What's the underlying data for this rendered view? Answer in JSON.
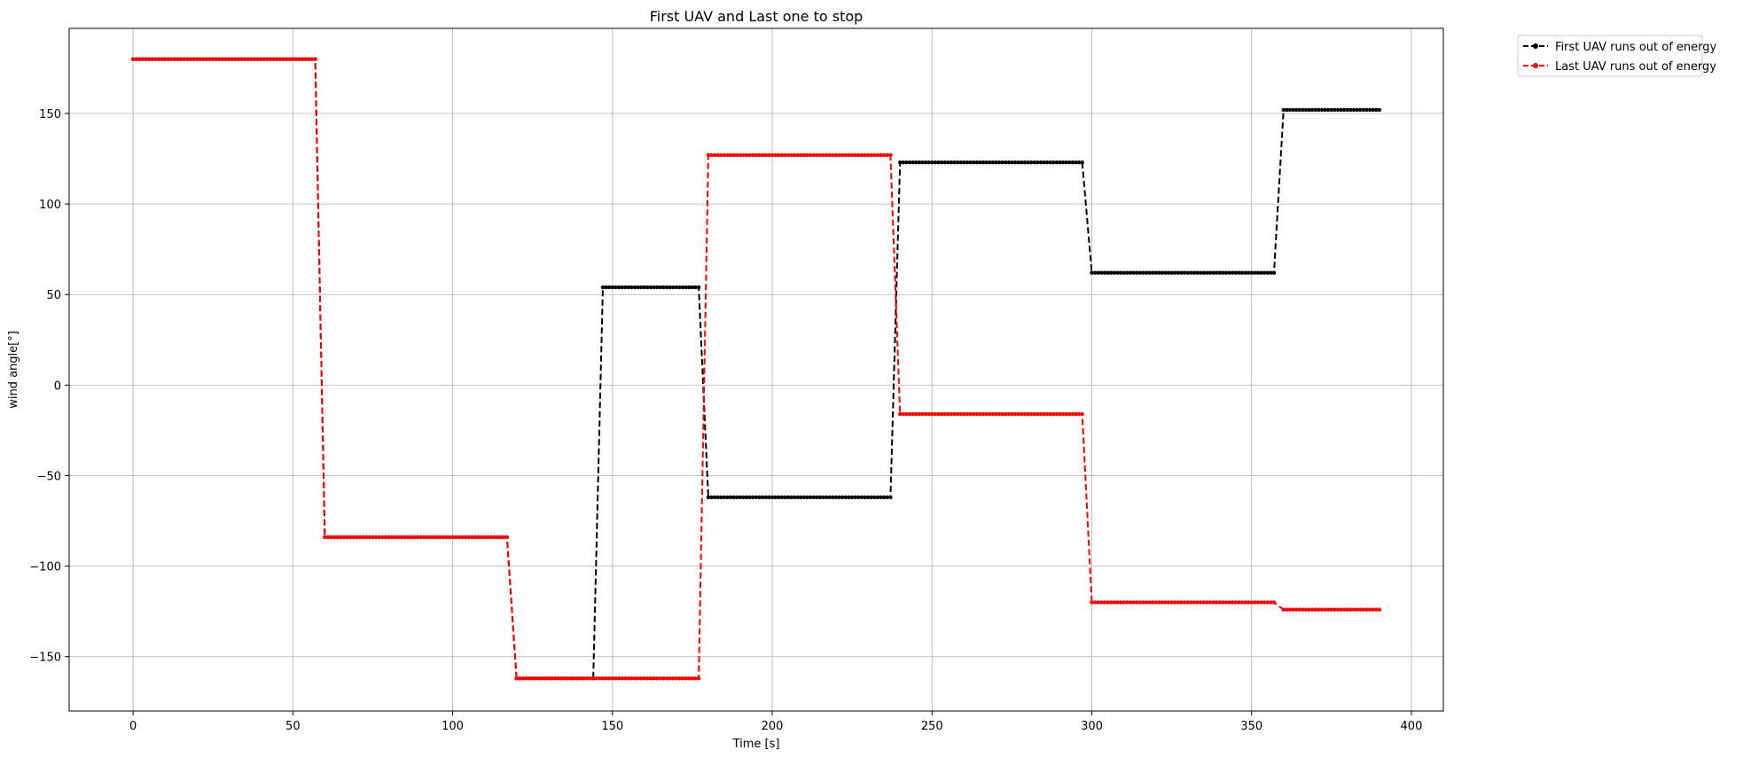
{
  "chart_data": {
    "type": "line",
    "title": "First UAV and Last one to stop",
    "xlabel": "Time [s]",
    "ylabel": "wind angle[°]",
    "xlim": [
      -20,
      410
    ],
    "ylim": [
      -180,
      197
    ],
    "xticks": [
      0,
      50,
      100,
      150,
      200,
      250,
      300,
      350,
      400
    ],
    "yticks": [
      -150,
      -100,
      -50,
      0,
      50,
      100,
      150
    ],
    "xtick_labels": [
      "0",
      "50",
      "100",
      "150",
      "200",
      "250",
      "300",
      "350",
      "400"
    ],
    "ytick_labels": [
      "−150",
      "−100",
      "−50",
      "0",
      "50",
      "100",
      "150"
    ],
    "grid": true,
    "legend_position": "outside-top-right",
    "marker": "dot",
    "line_style": "dashed",
    "series": [
      {
        "name": "First UAV runs out of energy",
        "color": "#000000",
        "segments": [
          {
            "t_start": 0,
            "t_end": 57,
            "value": 180
          },
          {
            "t_start": 60,
            "t_end": 117,
            "value": -84
          },
          {
            "t_start": 120,
            "t_end": 144,
            "value": -162
          },
          {
            "t_start": 147,
            "t_end": 177,
            "value": 54
          },
          {
            "t_start": 180,
            "t_end": 237,
            "value": -62
          },
          {
            "t_start": 240,
            "t_end": 297,
            "value": 123
          },
          {
            "t_start": 300,
            "t_end": 357,
            "value": 62
          },
          {
            "t_start": 360,
            "t_end": 390,
            "value": 152
          }
        ]
      },
      {
        "name": "Last UAV runs out of energy",
        "color": "#ff0000",
        "segments": [
          {
            "t_start": 0,
            "t_end": 57,
            "value": 180
          },
          {
            "t_start": 60,
            "t_end": 117,
            "value": -84
          },
          {
            "t_start": 120,
            "t_end": 177,
            "value": -162
          },
          {
            "t_start": 180,
            "t_end": 237,
            "value": 127
          },
          {
            "t_start": 240,
            "t_end": 297,
            "value": -16
          },
          {
            "t_start": 300,
            "t_end": 357,
            "value": -120
          },
          {
            "t_start": 360,
            "t_end": 390,
            "value": -124
          }
        ]
      }
    ]
  }
}
